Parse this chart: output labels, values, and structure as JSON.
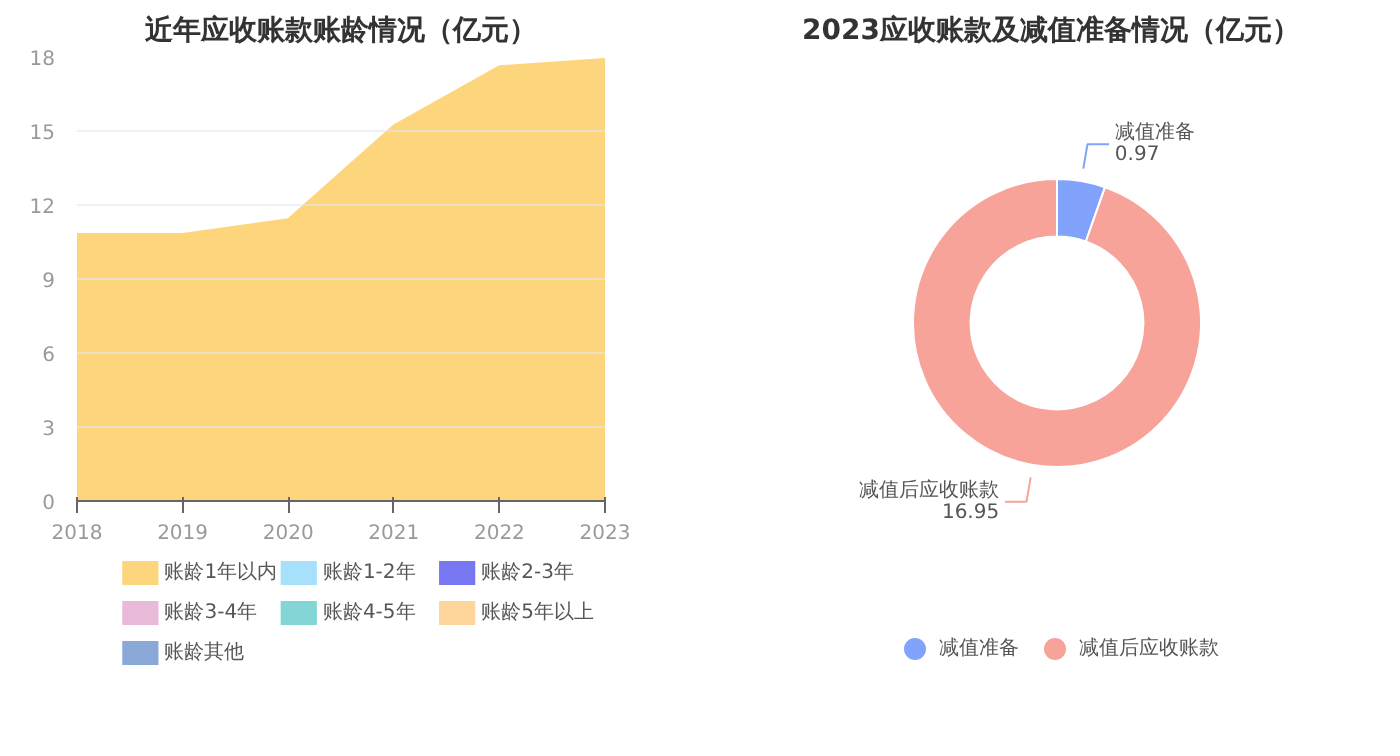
{
  "chart_data": [
    {
      "type": "area",
      "title": "近年应收账款账龄情况（亿元）",
      "x": [
        2018,
        2019,
        2020,
        2021,
        2022,
        2023
      ],
      "xlim": [
        2018,
        2023
      ],
      "xticks": [
        2018,
        2019,
        2020,
        2021,
        2022,
        2023
      ],
      "ylim": [
        0,
        18
      ],
      "yticks": [
        0,
        3,
        6,
        9,
        12,
        15,
        18
      ],
      "grid": "y",
      "legend": "bottom",
      "series": [
        {
          "name": "账龄1年以内",
          "color": "#fdd57c",
          "values": [
            10.8,
            10.8,
            11.4,
            15.2,
            17.6,
            17.9
          ]
        },
        {
          "name": "账龄1-2年",
          "color": "#a6e0fb",
          "values": [
            null,
            null,
            null,
            null,
            null,
            null
          ]
        },
        {
          "name": "账龄2-3年",
          "color": "#7777f2",
          "values": [
            null,
            null,
            null,
            null,
            null,
            null
          ]
        },
        {
          "name": "账龄3-4年",
          "color": "#e8b9d8",
          "values": [
            null,
            null,
            null,
            null,
            null,
            null
          ]
        },
        {
          "name": "账龄4-5年",
          "color": "#84d6d6",
          "values": [
            null,
            null,
            null,
            null,
            null,
            null
          ]
        },
        {
          "name": "账龄5年以上",
          "color": "#fed59a",
          "values": [
            null,
            null,
            null,
            null,
            null,
            null
          ]
        },
        {
          "name": "账龄其他",
          "color": "#8aa9d8",
          "values": [
            null,
            null,
            null,
            null,
            null,
            null
          ]
        }
      ]
    },
    {
      "type": "donut",
      "title": "2023应收账款及减值准备情况（亿元）",
      "categories": [
        "减值准备",
        "减值后应收账款"
      ],
      "values": [
        0.97,
        16.95
      ],
      "colors": [
        "#81a3fb",
        "#f8a39a"
      ],
      "data_labels": true,
      "legend": "bottom"
    }
  ]
}
